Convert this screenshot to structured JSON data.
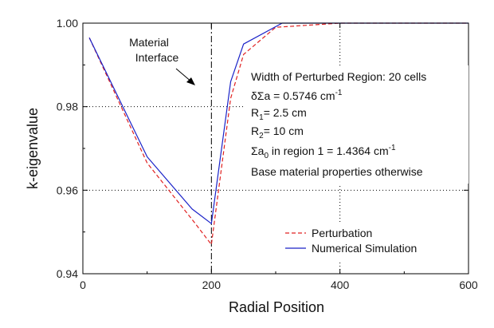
{
  "chart_data": {
    "type": "line",
    "xlabel": "Radial Position",
    "ylabel": "k-eigenvalue",
    "xlim": [
      0,
      600
    ],
    "ylim": [
      0.94,
      1.0
    ],
    "xticks": [
      0,
      200,
      400,
      600
    ],
    "yticks": [
      0.94,
      0.96,
      0.98,
      1.0
    ],
    "xtick_labels": [
      "0",
      "200",
      "400",
      "600"
    ],
    "ytick_labels": [
      "0.94",
      "0.96",
      "0.98",
      "1.00"
    ],
    "grid": "dotted",
    "legend_position": "bottom-right",
    "series": [
      {
        "name": "Perturbation",
        "color": "#e02020",
        "style": "dashed",
        "x": [
          10,
          100,
          170,
          200,
          230,
          250,
          300,
          400,
          600
        ],
        "y": [
          0.9965,
          0.9665,
          0.953,
          0.947,
          0.982,
          0.9925,
          0.999,
          1.0,
          1.0
        ]
      },
      {
        "name": "Numerical Simulation",
        "color": "#1a22c8",
        "style": "solid",
        "x": [
          10,
          100,
          170,
          200,
          230,
          250,
          310,
          400,
          600
        ],
        "y": [
          0.9965,
          0.968,
          0.9555,
          0.952,
          0.986,
          0.995,
          1.0,
          1.0,
          1.0
        ]
      }
    ],
    "reference_line": {
      "x": 200,
      "style": "dash-dot"
    },
    "annotations": {
      "material_interface": [
        "Material",
        "Interface"
      ],
      "info": {
        "line1": "Width of Perturbed Region: 20 cells",
        "line2_prefix": "δΣa = 0.5746 cm",
        "line2_sup": "-1",
        "line3_prefix": "R",
        "line3_sub": "1",
        "line3_suffix": "= 2.5 cm",
        "line4_prefix": "R",
        "line4_sub": "2",
        "line4_suffix": "= 10 cm",
        "line5_prefix": "Σa",
        "line5_sub": "0",
        "line5_mid": " in region 1 = 1.4364 cm",
        "line5_sup": "-1",
        "line6": "Base material properties otherwise"
      }
    }
  }
}
